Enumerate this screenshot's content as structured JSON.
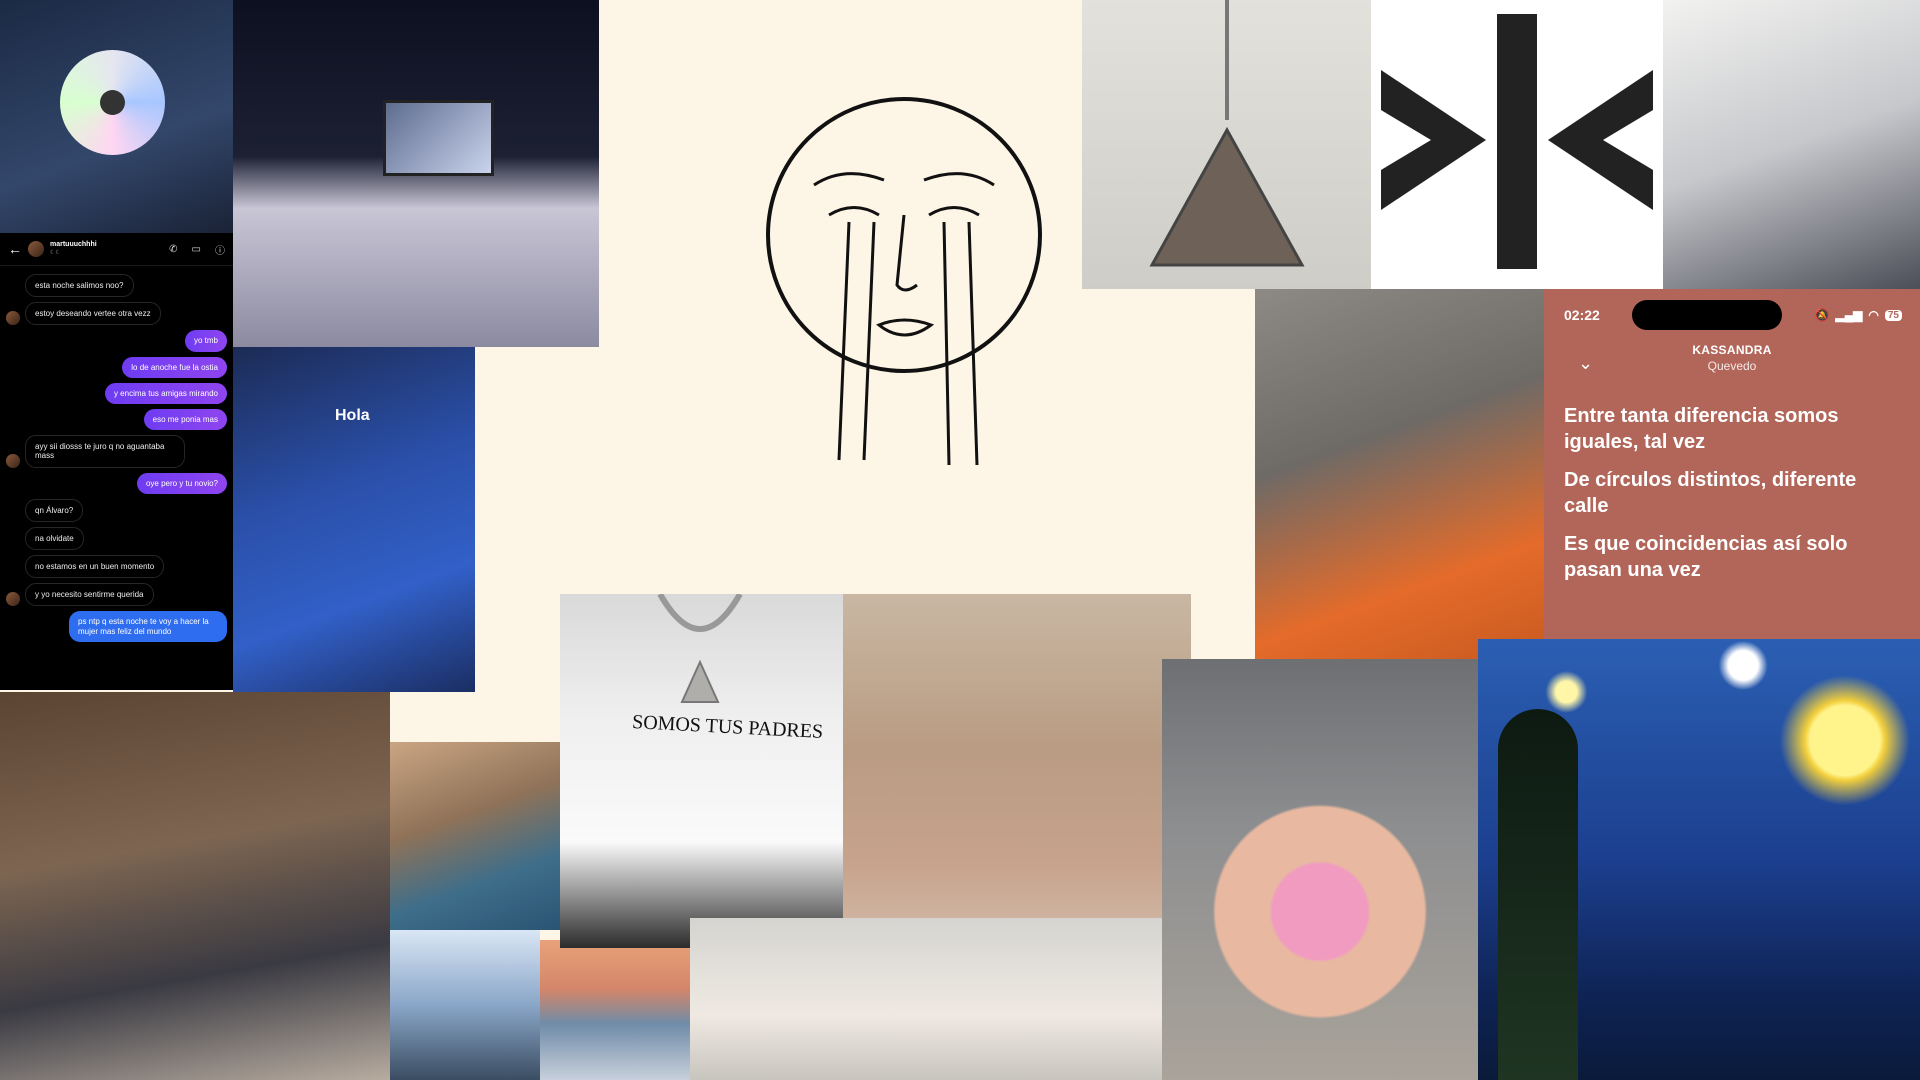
{
  "chat": {
    "username": "martuuuchhhi",
    "user_sub": "☾☾",
    "messages": [
      {
        "dir": "in",
        "text": "esta noche salimos noo?"
      },
      {
        "dir": "in",
        "text": "estoy deseando vertee otra vezz"
      },
      {
        "dir": "out",
        "text": "yo tmb"
      },
      {
        "dir": "out",
        "text": "lo de anoche fue la ostia"
      },
      {
        "dir": "out",
        "text": "y encima tus amigas mirando"
      },
      {
        "dir": "out",
        "text": "eso me ponia mas"
      },
      {
        "dir": "in",
        "text": "ayy sii diosss te juro q no aguantaba mass"
      },
      {
        "dir": "out",
        "text": "oye pero y tu novio?"
      },
      {
        "dir": "in",
        "text": "qn Álvaro?"
      },
      {
        "dir": "in",
        "text": "na olvidate"
      },
      {
        "dir": "in",
        "text": "no estamos en un buen momento"
      },
      {
        "dir": "in",
        "text": "y yo necesito sentirme querida"
      },
      {
        "dir": "blue",
        "text": "ps ntp q esta noche te voy a hacer la mujer mas feliz del mundo"
      }
    ]
  },
  "daw": {
    "label": "Hola"
  },
  "tshirt": {
    "text": "SOMOS TUS PADRES"
  },
  "lyrics": {
    "time": "02:22",
    "battery": "75",
    "song_title": "KASSANDRA",
    "artist": "Quevedo",
    "lines": [
      "Entre tanta diferencia somos iguales, tal vez",
      "De círculos distintos, diferente calle",
      "Es que coincidencias así solo pasan una vez"
    ]
  }
}
